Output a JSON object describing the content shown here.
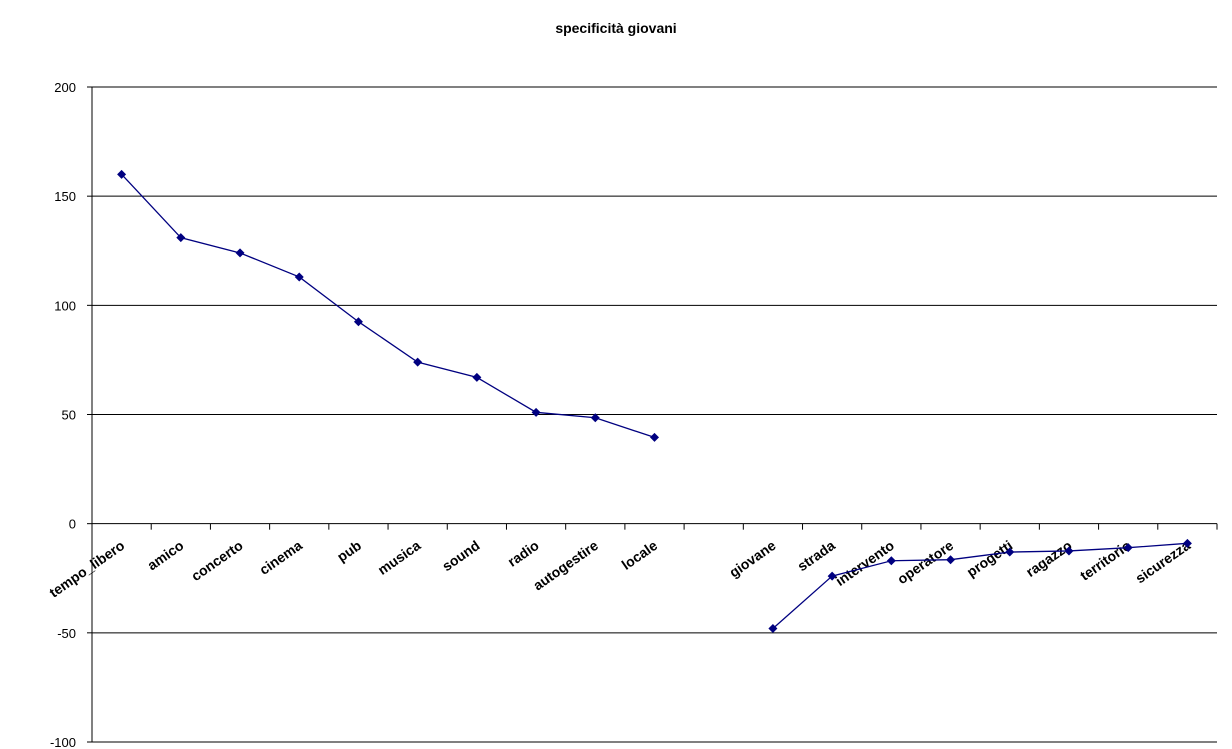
{
  "chart_data": {
    "type": "line",
    "title": "specificità giovani",
    "xlabel": "",
    "ylabel": "",
    "ylim": [
      -100,
      200
    ],
    "yticks": [
      200,
      150,
      100,
      50,
      0,
      -50,
      -100
    ],
    "grid": "horizontal",
    "legend": "none",
    "categories": [
      "tempo_libero",
      "amico",
      "concerto",
      "cinema",
      "pub",
      "musica",
      "sound",
      "radio",
      "autogestire",
      "locale",
      "",
      "giovane",
      "strada",
      "intervento",
      "operatore",
      "progetti",
      "ragazzo",
      "territorio",
      "sicurezza"
    ],
    "values": [
      160,
      131,
      124,
      113,
      92.5,
      74,
      67,
      51,
      48.5,
      39.5,
      null,
      -48,
      -24,
      -17,
      -16.5,
      -13,
      -12.5,
      -11,
      -9
    ],
    "series_color": "#000080"
  }
}
